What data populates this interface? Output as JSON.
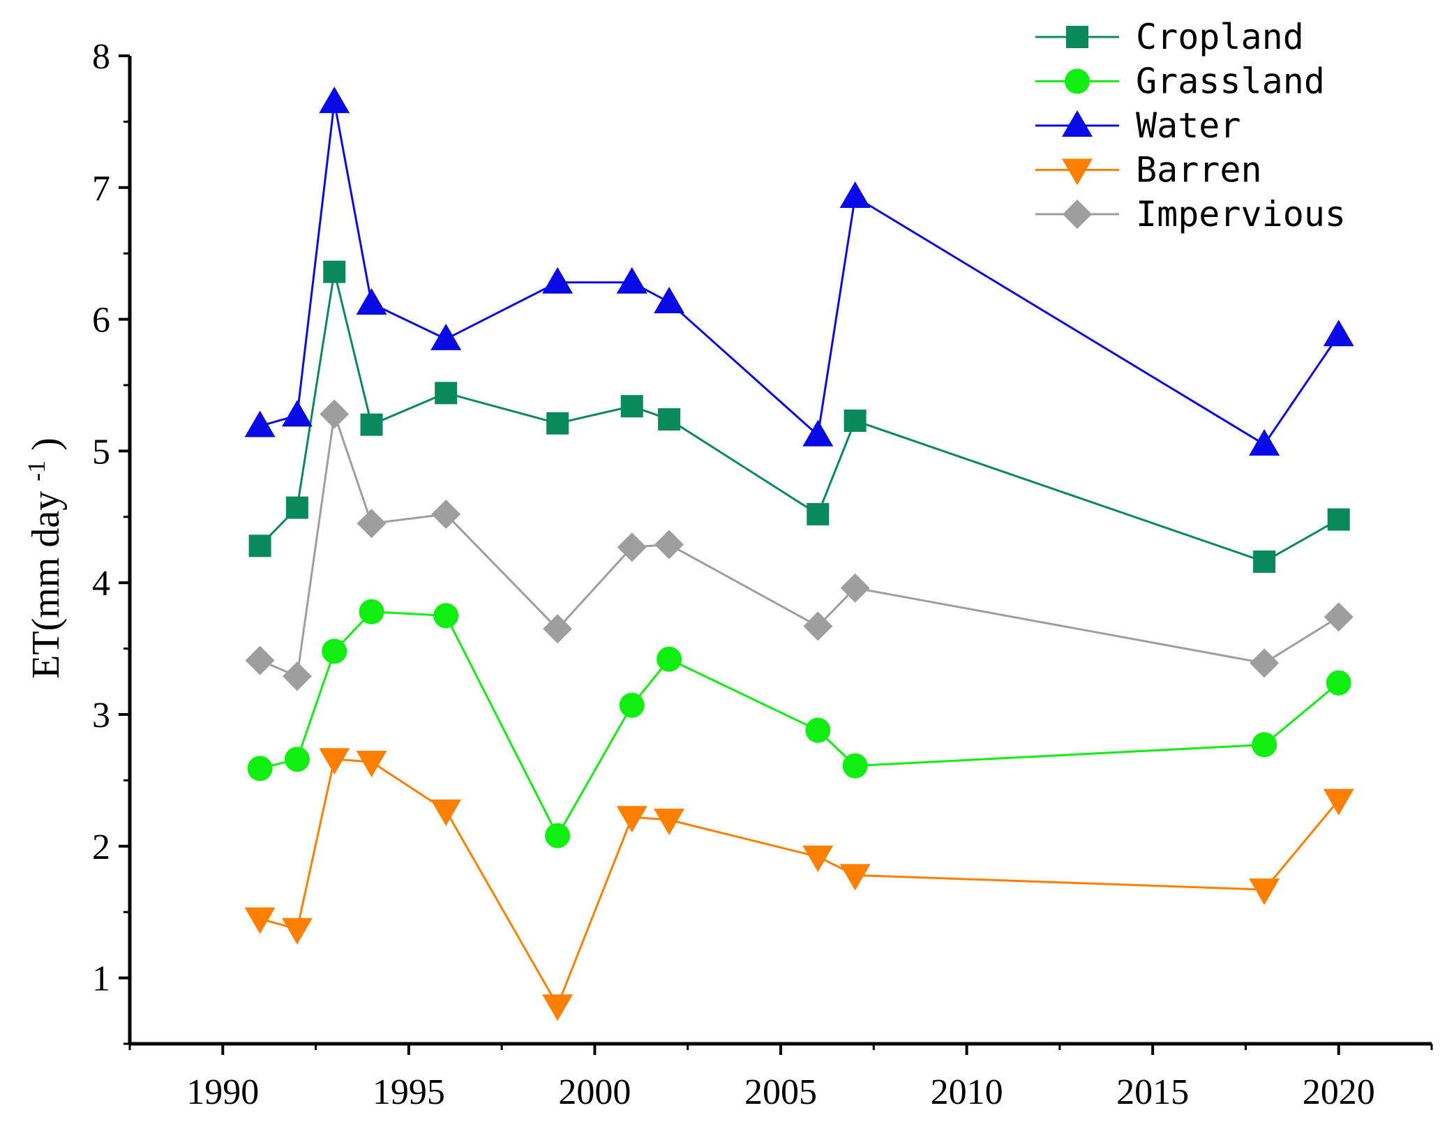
{
  "chart_data": {
    "type": "line",
    "title": "",
    "xlabel": "",
    "ylabel": "ET(mm day",
    "ylabel_sup": "-1",
    "ylabel_close": ")",
    "xlim": [
      1987.5,
      2022.5
    ],
    "ylim": [
      0.5,
      8
    ],
    "xticks": [
      1990,
      1995,
      2000,
      2005,
      2010,
      2015,
      2020
    ],
    "yticks": [
      1,
      2,
      3,
      4,
      5,
      6,
      7,
      8
    ],
    "x": [
      1991,
      1992,
      1993,
      1994,
      1996,
      1999,
      2001,
      2002,
      2006,
      2007,
      2018,
      2020
    ],
    "legend_position": "top-right",
    "series": [
      {
        "name": "Cropland",
        "color": "#0a8a5c",
        "marker": "square",
        "values": [
          4.28,
          4.57,
          6.36,
          5.2,
          5.44,
          5.21,
          5.34,
          5.24,
          4.52,
          5.23,
          4.16,
          4.48
        ]
      },
      {
        "name": "Grassland",
        "color": "#11ee11",
        "marker": "circle",
        "values": [
          2.59,
          2.66,
          3.48,
          3.78,
          3.75,
          2.08,
          3.07,
          3.42,
          2.88,
          2.61,
          2.77,
          3.24
        ]
      },
      {
        "name": "Water",
        "color": "#0a0ae6",
        "marker": "triangle-up",
        "values": [
          5.19,
          5.27,
          7.65,
          6.12,
          5.85,
          6.28,
          6.28,
          6.13,
          5.12,
          6.93,
          5.05,
          5.88
        ]
      },
      {
        "name": "Barren",
        "color": "#ff8000",
        "marker": "triangle-down",
        "values": [
          1.45,
          1.37,
          2.66,
          2.64,
          2.27,
          0.79,
          2.22,
          2.2,
          1.92,
          1.78,
          1.67,
          2.35
        ]
      },
      {
        "name": "Impervious",
        "color": "#9e9e9e",
        "marker": "diamond",
        "values": [
          3.41,
          3.29,
          5.28,
          4.45,
          4.52,
          3.65,
          4.27,
          4.29,
          3.67,
          3.96,
          3.39,
          3.74
        ]
      }
    ]
  }
}
